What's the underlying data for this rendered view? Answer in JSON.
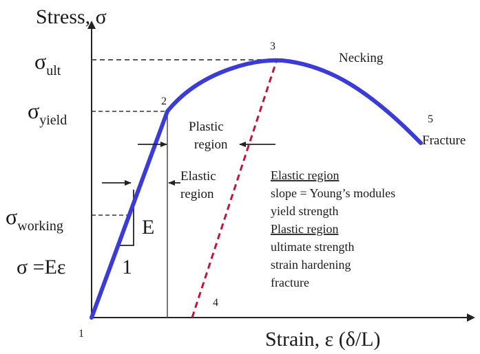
{
  "axes": {
    "y_title": "Stress, σ",
    "x_title": "Strain, ε (δ/L)"
  },
  "stress_levels": {
    "ult": {
      "symbol": "σ",
      "sub": "ult"
    },
    "yield": {
      "symbol": "σ",
      "sub": "yield"
    },
    "working": {
      "symbol": "σ",
      "sub": "working"
    }
  },
  "points": {
    "p1": "1",
    "p2": "2",
    "p3": "3",
    "p4": "4",
    "p5": "5"
  },
  "labels": {
    "necking": "Necking",
    "fracture": "Fracture",
    "plastic_region_l1": "Plastic",
    "plastic_region_l2": "region",
    "elastic_region_l1": "Elastic",
    "elastic_region_l2": "region",
    "modulus_symbol": "E",
    "slope_run": "1",
    "hookes_law": "σ =Eε"
  },
  "notes": {
    "elastic_heading": "Elastic region",
    "elastic_items": [
      "slope = Young’s modules",
      "yield strength"
    ],
    "plastic_heading": "Plastic region",
    "plastic_items": [
      "ultimate strength",
      "strain hardening",
      "fracture"
    ]
  },
  "colors": {
    "curve": "#3b3bd6",
    "unload": "#c0143c",
    "axis": "#222222",
    "guide": "#555555"
  }
}
